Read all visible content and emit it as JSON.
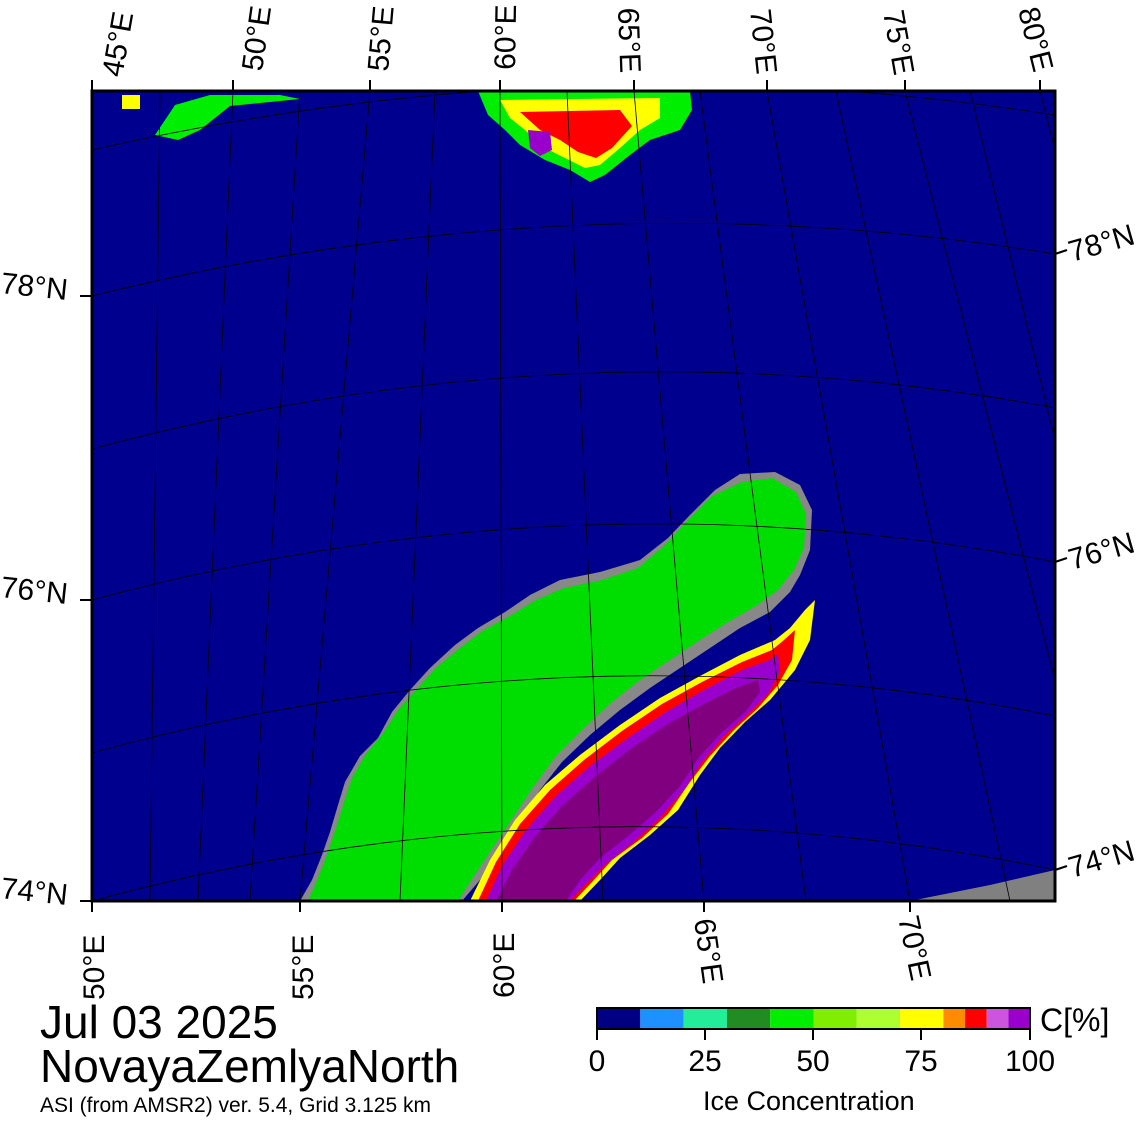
{
  "map": {
    "date": "Jul 03 2025",
    "region": "NovayaZemlyaNorth",
    "credit": "ASI (from AMSR2) ver. 5.4,  Grid 3.125 km",
    "top_lon_labels": [
      "45°E",
      "50°E",
      "55°E",
      "60°E",
      "65°E",
      "70°E",
      "75°E",
      "80°E"
    ],
    "bottom_lon_labels": [
      "50°E",
      "55°E",
      "60°E",
      "65°E",
      "70°E"
    ],
    "left_lat_labels": [
      "78°N",
      "76°N",
      "74°N"
    ],
    "right_lat_labels": [
      "78°N",
      "76°N",
      "74°N"
    ],
    "colors": {
      "ocean": "#00008f",
      "land": "#00dd00",
      "coast": "#888888",
      "no_data": "#808080"
    }
  },
  "legend": {
    "title": "Ice Concentration",
    "unit": "C[%]",
    "tick_labels": [
      "0",
      "25",
      "50",
      "75",
      "100"
    ],
    "colors": [
      "#000080",
      "#1e90ff",
      "#22ee99",
      "#228b22",
      "#00ee00",
      "#7fee00",
      "#adff2f",
      "#ffff00",
      "#ff8c00",
      "#ff0000",
      "#cc55dd",
      "#9900cc"
    ]
  }
}
